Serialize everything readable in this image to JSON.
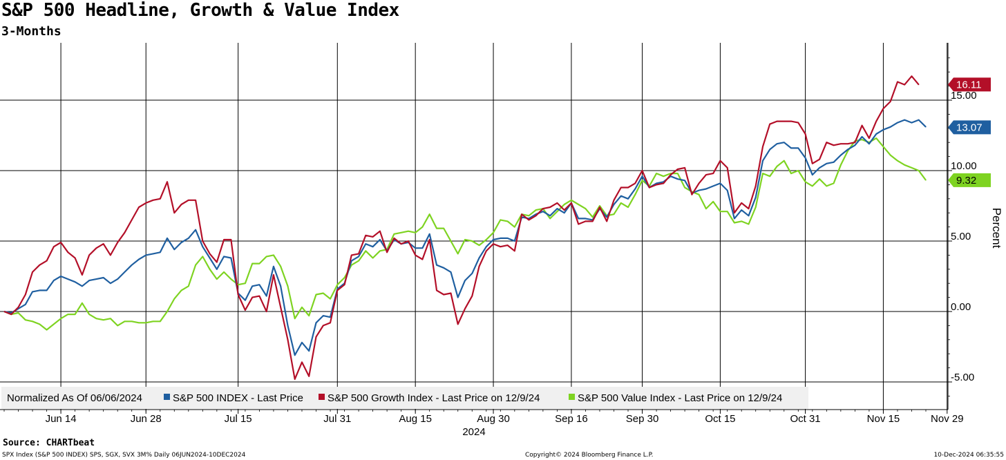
{
  "header": {
    "title": "S&P 500 Headline, Growth & Value Index",
    "subtitle": "3-Months"
  },
  "footer": {
    "source": "Source: CHARTbeat",
    "left": "SPX Index (S&P 500 INDEX) SPS, SGX, SVX 3M%  Daily 06JUN2024-10DEC2024",
    "middle": "Copyright© 2024 Bloomberg Finance L.P.",
    "right": "10-Dec-2024 06:35:55"
  },
  "chart_data": {
    "type": "line",
    "title": "S&P 500 Headline, Growth & Value Index",
    "subtitle": "3-Months",
    "xlabel": "2024",
    "ylabel": "Percent",
    "ylim": [
      -6.5,
      19
    ],
    "yticks": [
      -5,
      0,
      5,
      10,
      15
    ],
    "ytick_labels": [
      "-5.00",
      "0.00",
      "5.00",
      "10.00",
      "15.00"
    ],
    "xticks": [
      {
        "label": "Jun 14",
        "index": 8
      },
      {
        "label": "Jun 28",
        "index": 20
      },
      {
        "label": "Jul 15",
        "index": 33
      },
      {
        "label": "Jul 31",
        "index": 47
      },
      {
        "label": "Aug 15",
        "index": 58
      },
      {
        "label": "Aug 30",
        "index": 69
      },
      {
        "label": "Sep 16",
        "index": 80
      },
      {
        "label": "Sep 30",
        "index": 90
      },
      {
        "label": "Oct 15",
        "index": 101
      },
      {
        "label": "Oct 31",
        "index": 113
      },
      {
        "label": "Nov 15",
        "index": 124
      },
      {
        "label": "Nov 29",
        "index": 133
      }
    ],
    "grid": true,
    "legend_position": "bottom-left",
    "legend_note": "Normalized As Of 06/06/2024",
    "series": [
      {
        "name": "S&P 500 INDEX - Last Price",
        "color": "#1f5fa0",
        "last_label": "13.07",
        "values": [
          0.0,
          -0.1,
          0.2,
          0.5,
          1.4,
          1.5,
          1.5,
          2.2,
          2.5,
          2.3,
          2.1,
          1.8,
          2.2,
          2.3,
          2.4,
          2.0,
          2.3,
          2.8,
          3.3,
          3.7,
          4.0,
          4.1,
          4.2,
          5.2,
          4.4,
          4.9,
          5.2,
          5.8,
          4.6,
          3.8,
          3.0,
          3.9,
          3.8,
          1.3,
          0.8,
          1.8,
          1.9,
          1.1,
          3.2,
          1.8,
          -1.0,
          -3.1,
          -2.2,
          -2.8,
          -0.8,
          -0.3,
          -0.4,
          1.6,
          2.0,
          3.6,
          3.9,
          4.8,
          4.6,
          5.1,
          4.3,
          5.1,
          4.8,
          4.9,
          4.5,
          4.5,
          5.5,
          3.3,
          3.1,
          2.8,
          1.0,
          2.2,
          2.7,
          3.8,
          4.6,
          5.1,
          5.2,
          5.2,
          5.0,
          6.7,
          6.6,
          6.9,
          7.1,
          6.8,
          7.3,
          7.0,
          7.7,
          6.6,
          6.6,
          6.5,
          7.3,
          6.7,
          7.6,
          8.2,
          8.0,
          8.7,
          9.6,
          8.8,
          9.1,
          9.2,
          9.6,
          9.4,
          9.3,
          8.4,
          8.6,
          8.7,
          8.9,
          9.1,
          8.6,
          6.6,
          7.2,
          6.8,
          8.1,
          10.7,
          11.5,
          11.9,
          12.0,
          11.6,
          11.6,
          10.9,
          9.7,
          10.2,
          10.5,
          10.6,
          11.1,
          11.5,
          11.8,
          12.4,
          11.9,
          12.6,
          12.9,
          13.1,
          13.4,
          13.6,
          13.4,
          13.6,
          13.1
        ]
      },
      {
        "name": "S&P 500 Growth Index - Last Price on 12/9/24",
        "color": "#b30f28",
        "last_label": "16.11",
        "values": [
          0.0,
          -0.2,
          0.3,
          1.2,
          2.8,
          3.3,
          3.6,
          4.6,
          4.9,
          4.2,
          3.8,
          2.6,
          4.0,
          4.5,
          4.8,
          4.0,
          4.9,
          5.6,
          6.5,
          7.4,
          7.7,
          7.9,
          8.0,
          9.2,
          7.0,
          7.6,
          7.9,
          7.9,
          5.0,
          4.1,
          3.5,
          5.1,
          5.1,
          1.2,
          0.1,
          1.0,
          1.1,
          0.0,
          2.6,
          0.3,
          -2.0,
          -4.8,
          -3.6,
          -4.6,
          -1.8,
          -1.0,
          -0.8,
          1.5,
          1.9,
          4.0,
          4.1,
          5.4,
          5.3,
          5.7,
          4.2,
          5.2,
          4.8,
          5.0,
          4.0,
          3.7,
          5.1,
          1.5,
          1.2,
          1.3,
          -0.9,
          0.2,
          1.1,
          3.2,
          4.3,
          4.8,
          4.6,
          4.7,
          4.3,
          6.9,
          6.5,
          6.8,
          7.3,
          7.4,
          7.7,
          7.2,
          7.7,
          6.2,
          6.4,
          6.4,
          7.4,
          6.4,
          7.9,
          8.8,
          8.8,
          9.1,
          10.0,
          8.8,
          9.0,
          9.1,
          9.7,
          10.1,
          10.2,
          8.3,
          9.1,
          9.7,
          9.8,
          10.7,
          10.2,
          7.0,
          7.7,
          7.3,
          8.9,
          11.7,
          13.3,
          13.5,
          13.5,
          13.5,
          13.4,
          12.6,
          10.5,
          10.8,
          12.0,
          11.8,
          11.9,
          11.9,
          12.0,
          13.2,
          12.3,
          13.5,
          14.4,
          14.9,
          16.3,
          16.1,
          16.7,
          16.1
        ]
      },
      {
        "name": "S&P 500 Value Index - Last Price on 12/9/24",
        "color": "#7ed321",
        "last_label": "9.32",
        "values": [
          0.0,
          -0.2,
          -0.1,
          -0.6,
          -0.7,
          -0.9,
          -1.3,
          -0.9,
          -0.5,
          -0.2,
          -0.2,
          0.6,
          -0.2,
          -0.5,
          -0.6,
          -0.5,
          -1.0,
          -0.7,
          -0.7,
          -0.8,
          -0.8,
          -0.7,
          -0.7,
          0.0,
          0.9,
          1.5,
          1.8,
          3.3,
          3.9,
          3.0,
          2.3,
          2.8,
          2.3,
          1.9,
          2.0,
          3.4,
          3.4,
          3.9,
          4.0,
          3.2,
          1.8,
          -0.5,
          0.3,
          -0.3,
          1.2,
          1.3,
          0.9,
          1.9,
          2.4,
          3.3,
          3.6,
          4.3,
          3.8,
          4.3,
          4.4,
          5.5,
          5.6,
          5.7,
          5.6,
          6.0,
          6.9,
          5.9,
          5.9,
          5.0,
          4.1,
          5.1,
          5.0,
          4.7,
          5.1,
          5.6,
          6.5,
          6.4,
          6.0,
          6.9,
          6.8,
          7.2,
          7.3,
          6.6,
          7.1,
          7.6,
          7.9,
          7.6,
          7.3,
          6.7,
          7.5,
          6.8,
          6.9,
          7.7,
          7.4,
          8.3,
          9.3,
          8.9,
          9.8,
          9.6,
          9.8,
          9.8,
          8.8,
          8.5,
          8.3,
          7.3,
          7.8,
          7.1,
          7.1,
          6.3,
          6.4,
          6.2,
          7.4,
          9.8,
          9.6,
          10.3,
          10.7,
          9.8,
          10.0,
          9.2,
          8.9,
          9.4,
          8.9,
          9.1,
          10.4,
          11.4,
          12.1,
          12.2,
          12.0,
          12.3,
          11.7,
          11.1,
          10.7,
          10.4,
          10.2,
          10.0,
          9.32
        ]
      }
    ]
  }
}
